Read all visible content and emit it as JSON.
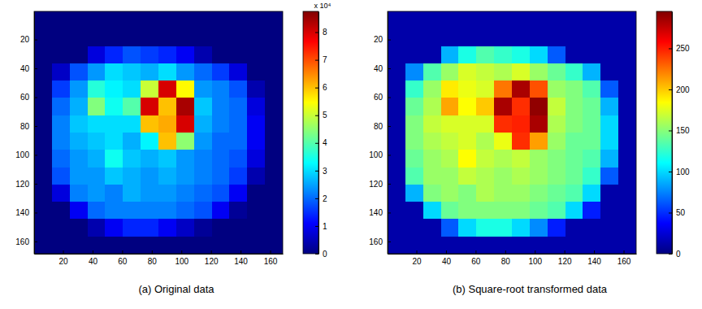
{
  "chart_data": [
    {
      "type": "heatmap",
      "title": "(a) Original data",
      "xlim": [
        0.5,
        168.5
      ],
      "ylim": [
        168.5,
        0.5
      ],
      "xticks": [
        20,
        40,
        60,
        80,
        100,
        120,
        140,
        160
      ],
      "yticks": [
        20,
        40,
        60,
        80,
        100,
        120,
        140,
        160
      ],
      "x_edges": [
        0.5,
        12.5,
        24.5,
        36.5,
        48.5,
        60.5,
        72.5,
        84.5,
        96.5,
        108.5,
        120.5,
        132.5,
        144.5,
        156.5,
        168.5
      ],
      "y_edges": [
        0.5,
        12.5,
        24.5,
        36.5,
        48.5,
        60.5,
        72.5,
        84.5,
        96.5,
        108.5,
        120.5,
        132.5,
        144.5,
        156.5,
        168.5
      ],
      "cells": [
        [
          0,
          0,
          0,
          0,
          0,
          0,
          0,
          0,
          0,
          0,
          0,
          0,
          0,
          0
        ],
        [
          0,
          0,
          0,
          0,
          0,
          0,
          0,
          0,
          0,
          0,
          0,
          0,
          0,
          0
        ],
        [
          0,
          0,
          0,
          8000,
          14000,
          18000,
          16000,
          14000,
          10000,
          4000,
          0,
          0,
          0,
          0
        ],
        [
          0,
          6000,
          18000,
          24000,
          30000,
          28000,
          26000,
          30000,
          24000,
          20000,
          16000,
          8000,
          0,
          0
        ],
        [
          0,
          16000,
          24000,
          36000,
          32000,
          30000,
          50000,
          80000,
          55000,
          24000,
          22000,
          18000,
          4000,
          0
        ],
        [
          0,
          20000,
          26000,
          44000,
          34000,
          40000,
          80000,
          60000,
          84000,
          28000,
          22000,
          20000,
          8000,
          0
        ],
        [
          0,
          22000,
          28000,
          30000,
          30000,
          30000,
          60000,
          62000,
          80000,
          26000,
          22000,
          20000,
          10000,
          0
        ],
        [
          0,
          22000,
          26000,
          28000,
          30000,
          26000,
          32000,
          60000,
          45000,
          24000,
          20000,
          20000,
          10000,
          0
        ],
        [
          0,
          20000,
          24000,
          26000,
          34000,
          28000,
          26000,
          28000,
          24000,
          22000,
          20000,
          18000,
          8000,
          0
        ],
        [
          0,
          18000,
          24000,
          24000,
          28000,
          26000,
          24000,
          26000,
          24000,
          22000,
          20000,
          16000,
          4000,
          0
        ],
        [
          0,
          8000,
          22000,
          24000,
          22000,
          26000,
          24000,
          24000,
          22000,
          20000,
          18000,
          10000,
          0,
          0
        ],
        [
          0,
          0,
          10000,
          20000,
          22000,
          22000,
          22000,
          22000,
          20000,
          18000,
          10000,
          2000,
          0,
          0
        ],
        [
          0,
          0,
          0,
          4000,
          10000,
          14000,
          14000,
          10000,
          6000,
          2000,
          0,
          0,
          0,
          0
        ],
        [
          0,
          0,
          0,
          0,
          0,
          0,
          0,
          0,
          0,
          0,
          0,
          0,
          0,
          0
        ]
      ],
      "colorbar_range": [
        0,
        87500
      ],
      "colorbar_ticks": [
        {
          "value": 0,
          "label": "0"
        },
        {
          "value": 10000,
          "label": "1"
        },
        {
          "value": 20000,
          "label": "2"
        },
        {
          "value": 30000,
          "label": "3"
        },
        {
          "value": 40000,
          "label": "4"
        },
        {
          "value": 50000,
          "label": "5"
        },
        {
          "value": 60000,
          "label": "6"
        },
        {
          "value": 70000,
          "label": "7"
        },
        {
          "value": 80000,
          "label": "8"
        }
      ],
      "colorbar_exponent": "x 10⁴"
    },
    {
      "type": "heatmap",
      "title": "(b) Square-root transformed data",
      "xlim": [
        0.5,
        168.5
      ],
      "ylim": [
        168.5,
        0.5
      ],
      "xticks": [
        20,
        40,
        60,
        80,
        100,
        120,
        140,
        160
      ],
      "yticks": [
        20,
        40,
        60,
        80,
        100,
        120,
        140,
        160
      ],
      "x_edges": [
        0.5,
        12.5,
        24.5,
        36.5,
        48.5,
        60.5,
        72.5,
        84.5,
        96.5,
        108.5,
        120.5,
        132.5,
        144.5,
        156.5,
        168.5
      ],
      "y_edges": [
        0.5,
        12.5,
        24.5,
        36.5,
        48.5,
        60.5,
        72.5,
        84.5,
        96.5,
        108.5,
        120.5,
        132.5,
        144.5,
        156.5,
        168.5
      ],
      "cells": [
        [
          12,
          12,
          12,
          12,
          12,
          12,
          12,
          12,
          12,
          12,
          12,
          12,
          12,
          12
        ],
        [
          12,
          12,
          12,
          12,
          12,
          12,
          12,
          12,
          12,
          12,
          12,
          12,
          12,
          12
        ],
        [
          12,
          12,
          12,
          89,
          118,
          134,
          126,
          118,
          100,
          63,
          12,
          12,
          12,
          12
        ],
        [
          12,
          77,
          134,
          155,
          173,
          167,
          161,
          173,
          155,
          141,
          126,
          89,
          12,
          12
        ],
        [
          12,
          126,
          155,
          190,
          179,
          173,
          224,
          283,
          235,
          155,
          148,
          134,
          63,
          12
        ],
        [
          12,
          141,
          161,
          210,
          184,
          200,
          283,
          245,
          290,
          167,
          148,
          141,
          89,
          12
        ],
        [
          12,
          148,
          167,
          173,
          173,
          173,
          245,
          249,
          283,
          161,
          148,
          141,
          100,
          12
        ],
        [
          12,
          148,
          161,
          167,
          173,
          161,
          179,
          245,
          212,
          155,
          141,
          141,
          100,
          12
        ],
        [
          12,
          141,
          155,
          161,
          184,
          167,
          161,
          167,
          155,
          148,
          141,
          134,
          89,
          12
        ],
        [
          12,
          134,
          155,
          155,
          167,
          161,
          155,
          161,
          155,
          148,
          141,
          126,
          63,
          12
        ],
        [
          12,
          89,
          148,
          155,
          148,
          161,
          155,
          155,
          148,
          141,
          134,
          100,
          12,
          12
        ],
        [
          12,
          12,
          100,
          141,
          148,
          148,
          148,
          148,
          141,
          134,
          100,
          45,
          12,
          12
        ],
        [
          12,
          12,
          12,
          63,
          100,
          118,
          118,
          100,
          77,
          45,
          12,
          12,
          12,
          12
        ],
        [
          12,
          12,
          12,
          12,
          12,
          12,
          12,
          12,
          12,
          12,
          12,
          12,
          12,
          12
        ]
      ],
      "colorbar_range": [
        0,
        295
      ],
      "colorbar_ticks": [
        0,
        50,
        100,
        150,
        200,
        250
      ]
    }
  ]
}
